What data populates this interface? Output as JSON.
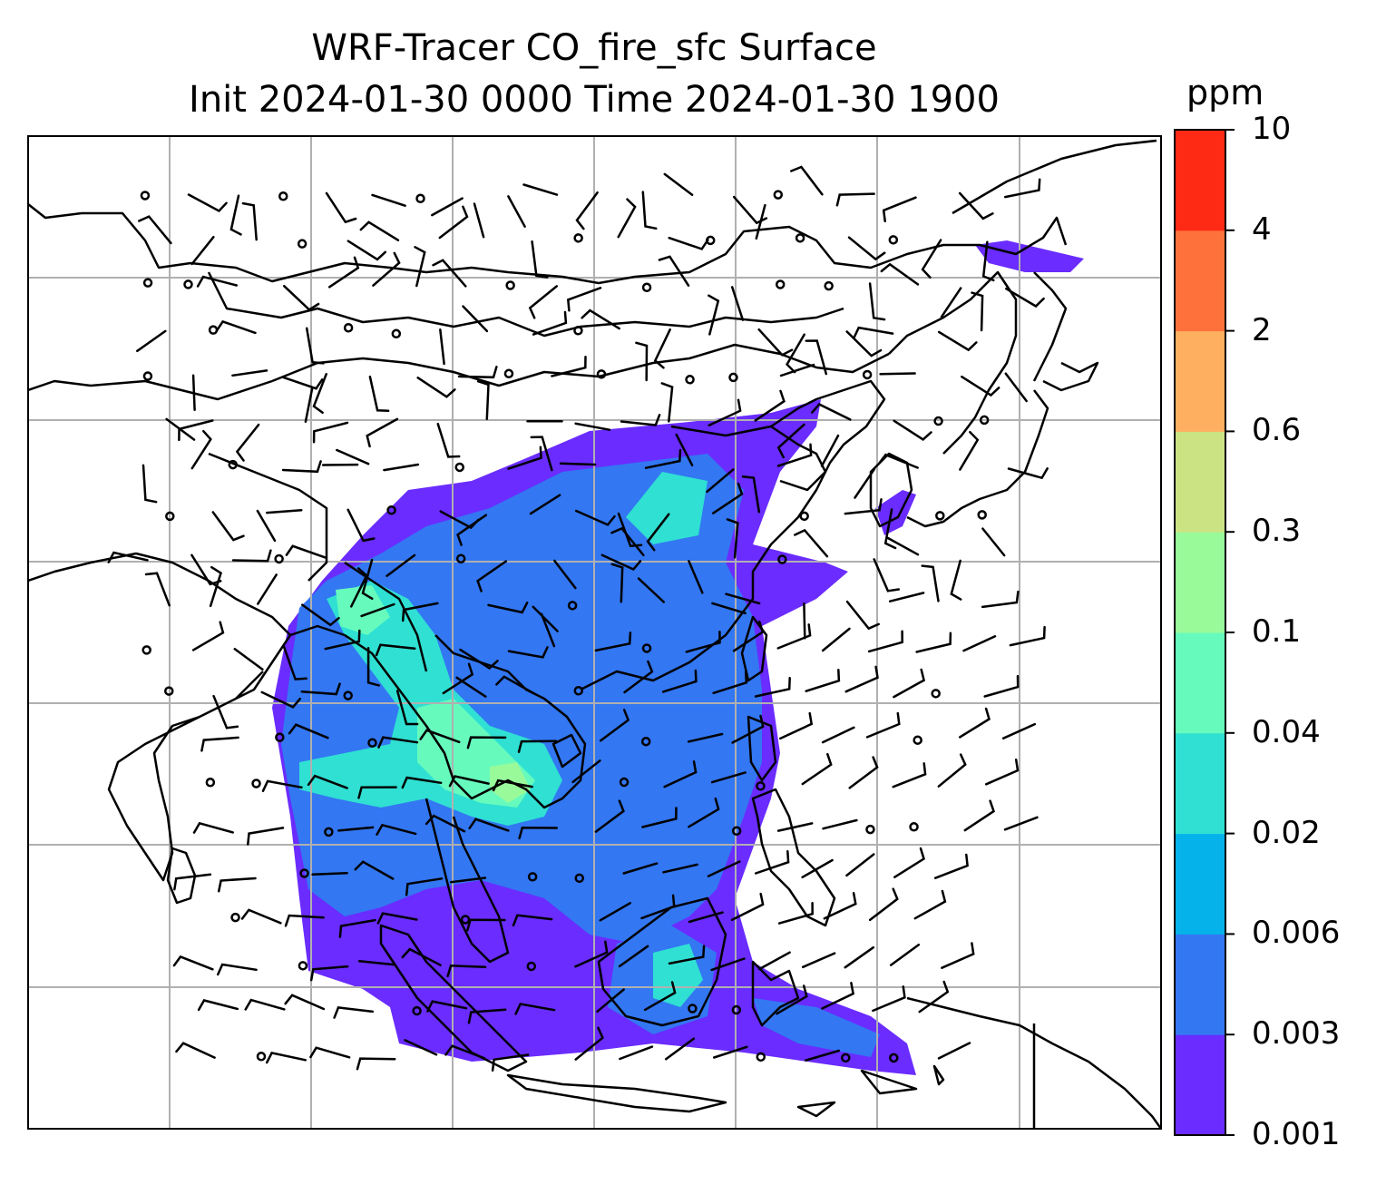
{
  "title": {
    "line1": "WRF-Tracer CO_fire_sfc Surface",
    "line2": "Init 2024-01-30 0000 Time 2024-01-30 1900"
  },
  "colorbar": {
    "unit": "ppm",
    "levels": [
      "0.001",
      "0.003",
      "0.006",
      "0.02",
      "0.04",
      "0.1",
      "0.3",
      "0.6",
      "2",
      "4",
      "10"
    ],
    "colors": [
      "#6a2cff",
      "#3377f2",
      "#06b2ea",
      "#2fe0d3",
      "#66fbbd",
      "#99fa9a",
      "#cce384",
      "#ffaf60",
      "#ff713b",
      "#ff2a14"
    ]
  },
  "map": {
    "field_colors": {
      "lowest": "#6a2cff",
      "low": "#3377f2",
      "mid": "#2fe0d3",
      "high": "#66fbbd",
      "peak": "#99fa9a"
    },
    "coastline_color": "#000000",
    "grid_color": "#b0b0b0",
    "barb_color": "#000000"
  }
}
